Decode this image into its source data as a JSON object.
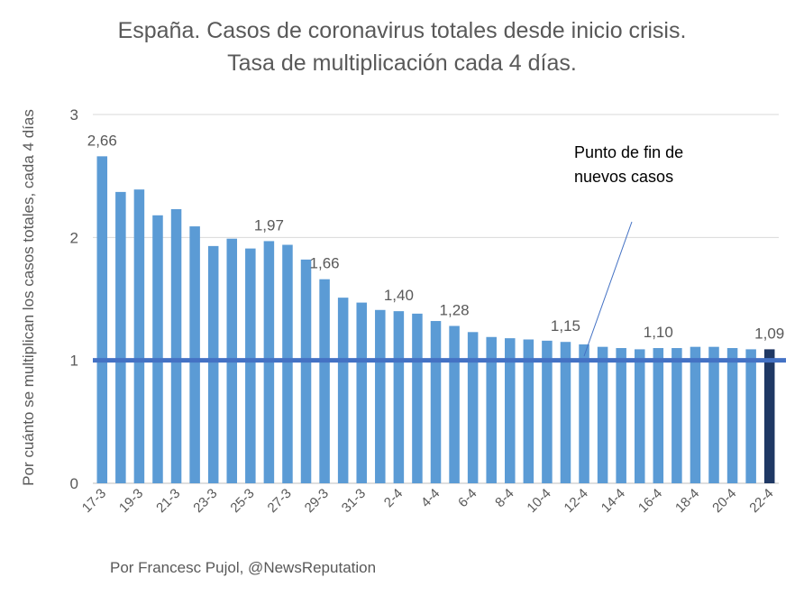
{
  "title_line1": "España. Casos de coronavirus totales desde inicio crisis.",
  "title_line2": "Tasa de multiplicación cada 4 días.",
  "footer": "Por Francesc Pujol, @NewsReputation",
  "annotation_line1": "Punto de fin de",
  "annotation_line2": "nuevos casos",
  "colors": {
    "bar": "#5B9BD5",
    "last_bar": "#1F3864",
    "reference_line": "#4472C4",
    "grid": "#D9D9D9",
    "text": "#595959"
  },
  "chart_data": {
    "type": "bar",
    "ylabel": "Por cuánto se multiplican los casos totales, cada 4 días",
    "xlabel": "",
    "ylim": [
      0,
      3
    ],
    "yticks": [
      0,
      1,
      2,
      3
    ],
    "grid": true,
    "categories": [
      "17-3",
      "18-3",
      "19-3",
      "20-3",
      "21-3",
      "22-3",
      "23-3",
      "24-3",
      "25-3",
      "26-3",
      "27-3",
      "28-3",
      "29-3",
      "30-3",
      "31-3",
      "1-4",
      "2-4",
      "3-4",
      "4-4",
      "5-4",
      "6-4",
      "7-4",
      "8-4",
      "9-4",
      "10-4",
      "11-4",
      "12-4",
      "13-4",
      "14-4",
      "15-4",
      "16-4",
      "17-4",
      "18-4",
      "19-4",
      "20-4",
      "21-4",
      "22-4"
    ],
    "tick_labels": [
      "17-3",
      "19-3",
      "21-3",
      "23-3",
      "25-3",
      "27-3",
      "29-3",
      "31-3",
      "2-4",
      "4-4",
      "6-4",
      "8-4",
      "10-4",
      "12-4",
      "14-4",
      "16-4",
      "18-4",
      "20-4",
      "22-4"
    ],
    "values": [
      2.66,
      2.37,
      2.39,
      2.18,
      2.23,
      2.09,
      1.93,
      1.99,
      1.91,
      1.97,
      1.94,
      1.82,
      1.66,
      1.51,
      1.47,
      1.41,
      1.4,
      1.38,
      1.32,
      1.28,
      1.23,
      1.19,
      1.18,
      1.17,
      1.16,
      1.15,
      1.13,
      1.11,
      1.1,
      1.09,
      1.1,
      1.1,
      1.11,
      1.11,
      1.1,
      1.09,
      1.09
    ],
    "data_labels": [
      {
        "index": 0,
        "text": "2,66"
      },
      {
        "index": 9,
        "text": "1,97"
      },
      {
        "index": 12,
        "text": "1,66"
      },
      {
        "index": 16,
        "text": "1,40"
      },
      {
        "index": 19,
        "text": "1,28"
      },
      {
        "index": 25,
        "text": "1,15"
      },
      {
        "index": 30,
        "text": "1,10"
      },
      {
        "index": 36,
        "text": "1,09"
      }
    ],
    "reference_line": {
      "value": 1
    }
  }
}
